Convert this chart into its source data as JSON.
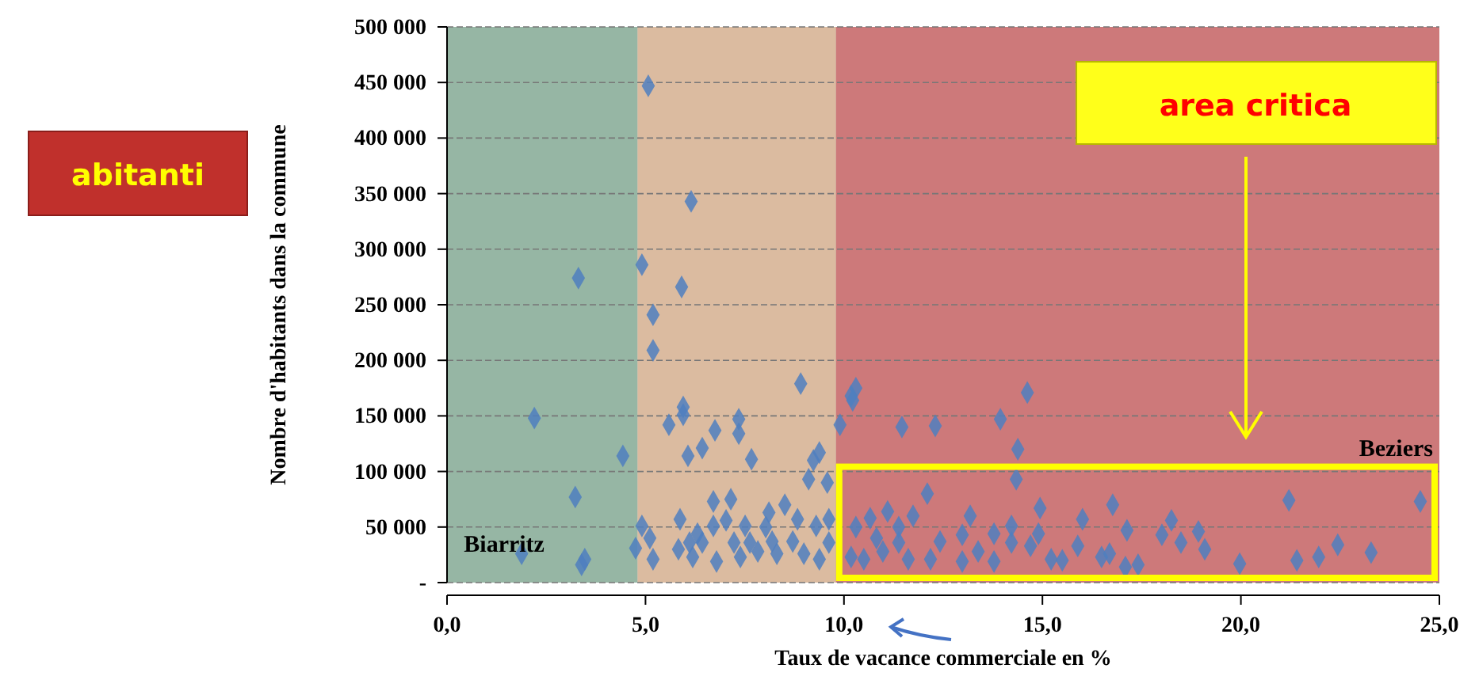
{
  "chart_data": {
    "type": "scatter",
    "xlabel": "Taux de vacance commerciale  en %",
    "ylabel": "Nombre d'habitants dans la commune",
    "xlim": [
      0,
      25
    ],
    "xticks": [
      {
        "value": 0,
        "label": "0,0"
      },
      {
        "value": 5,
        "label": "5,0"
      },
      {
        "value": 10,
        "label": "10,0"
      },
      {
        "value": 15,
        "label": "15,0"
      },
      {
        "value": 20,
        "label": "20,0"
      },
      {
        "value": 25,
        "label": "25,0"
      }
    ],
    "ylim": [
      0,
      500000
    ],
    "yticks": [
      {
        "value": 0,
        "label": "-"
      },
      {
        "value": 50000,
        "label": "50 000"
      },
      {
        "value": 100000,
        "label": "100 000"
      },
      {
        "value": 150000,
        "label": "150 000"
      },
      {
        "value": 200000,
        "label": "200 000"
      },
      {
        "value": 250000,
        "label": "250 000"
      },
      {
        "value": 300000,
        "label": "300 000"
      },
      {
        "value": 350000,
        "label": "350 000"
      },
      {
        "value": 400000,
        "label": "400 000"
      },
      {
        "value": 450000,
        "label": "450 000"
      },
      {
        "value": 500000,
        "label": "500 000"
      }
    ],
    "grid": "y",
    "marker": "diamond",
    "bands": [
      {
        "axis": "x",
        "from": 0,
        "to": 4.8,
        "color": "#8fb39f"
      },
      {
        "axis": "x",
        "from": 4.8,
        "to": 9.8,
        "color": "#dcb89a"
      },
      {
        "axis": "x",
        "from": 9.8,
        "to": 25,
        "color": "#cc6f70"
      }
    ],
    "annotations": [
      "abitanti",
      "area critica",
      {
        "text": "Biarritz",
        "x": 1.88,
        "y": 26000
      },
      {
        "text": "Beziers",
        "x": 24.52,
        "y": 73000
      }
    ],
    "series": [
      {
        "color": "#4f7fbf",
        "x": [
          2.2,
          4.43,
          3.23,
          1.88,
          3.39,
          3.47,
          4.91,
          4.75,
          5.07,
          6.15,
          4.91,
          3.31,
          5.91,
          5.19,
          5.19,
          8.91,
          5.95,
          5.95,
          5.59,
          6.75,
          7.35,
          7.35,
          6.43,
          6.07,
          7.67,
          9.38,
          9.23,
          9.11,
          9.58,
          6.71,
          7.15,
          8.51,
          8.11,
          9.9,
          10.18,
          5.87,
          6.31,
          6.71,
          7.03,
          7.51,
          8.03,
          8.83,
          9.3,
          9.62,
          5.83,
          6.19,
          6.79,
          7.39,
          7.83,
          8.31,
          8.99,
          9.38,
          5.11,
          5.19,
          6.11,
          6.43,
          7.23,
          7.63,
          8.19,
          8.71,
          9.62,
          10.3,
          10.22,
          14.62,
          11.46,
          12.3,
          13.94,
          14.38,
          14.34,
          12.1,
          14.94,
          16.77,
          21.21,
          24.52,
          13.18,
          16.01,
          18.25,
          17.13,
          18.93,
          18.01,
          11.74,
          11.1,
          10.66,
          10.3,
          10.82,
          11.38,
          11.62,
          12.18,
          12.42,
          12.98,
          12.98,
          13.38,
          13.78,
          13.78,
          14.22,
          14.22,
          14.9,
          14.7,
          15.22,
          15.5,
          15.89,
          16.49,
          16.69,
          17.09,
          17.41,
          18.49,
          19.09,
          19.97,
          21.41,
          21.96,
          22.44,
          23.28,
          10.18,
          10.5,
          10.98,
          11.38
        ],
        "values": [
          148000,
          114000,
          77000,
          26000,
          16000,
          21000,
          51000,
          31000,
          447000,
          343000,
          286000,
          274000,
          266000,
          241000,
          209000,
          179000,
          158000,
          151000,
          142000,
          137000,
          147000,
          134000,
          121000,
          114000,
          111000,
          117000,
          110000,
          93000,
          90000,
          73000,
          75000,
          70000,
          63000,
          142000,
          168000,
          57000,
          44000,
          51000,
          56000,
          51000,
          50000,
          57000,
          51000,
          57000,
          30000,
          23000,
          19000,
          23000,
          28000,
          26000,
          26000,
          21000,
          40000,
          21000,
          36000,
          36000,
          36000,
          36000,
          37000,
          37000,
          36000,
          175000,
          164000,
          171000,
          140000,
          141000,
          147000,
          120000,
          93000,
          80000,
          67000,
          70000,
          74000,
          73000,
          60000,
          57000,
          56000,
          47000,
          46000,
          43000,
          60000,
          64000,
          58000,
          50000,
          40000,
          36000,
          21000,
          21000,
          37000,
          43000,
          19000,
          28000,
          44000,
          19000,
          36000,
          51000,
          44000,
          33000,
          21000,
          20000,
          33000,
          23000,
          26000,
          14000,
          16000,
          36000,
          30000,
          17000,
          20000,
          23000,
          34000,
          27000,
          23000,
          21000,
          28000,
          50000
        ]
      }
    ]
  }
}
